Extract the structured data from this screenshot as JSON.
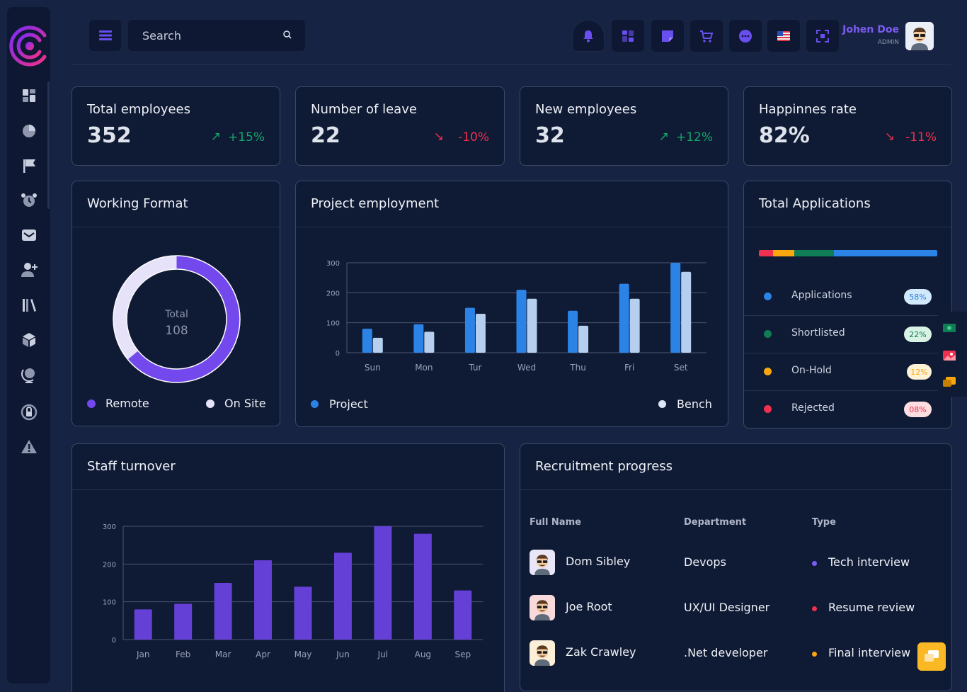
{
  "colors": {
    "accent": "#7c5cf2",
    "up": "#13a86a",
    "down": "#f0304f",
    "blue": "#2b83e6",
    "light_blue": "#b6cfee",
    "purple": "#6440d6"
  },
  "header": {
    "search_placeholder": "Search",
    "user": {
      "name": "Johen Doe",
      "role": "ADMIN"
    },
    "icons": [
      "bell-icon",
      "apps-icon",
      "note-icon",
      "cart-icon",
      "chat-icon",
      "flag-us-icon",
      "fullscreen-icon"
    ]
  },
  "sidebar": {
    "icons": [
      "dashboard-icon",
      "pie-chart-icon",
      "flag-icon",
      "alarm-icon",
      "mail-icon",
      "add-user-icon",
      "library-icon",
      "box-icon",
      "globe-icon",
      "lock-refresh-icon",
      "warning-icon"
    ]
  },
  "kpis": [
    {
      "title": "Total employees",
      "value": "352",
      "change": "+15%",
      "arrow": "↗",
      "trend": "up"
    },
    {
      "title": "Number of leave",
      "value": "22",
      "change": "-10%",
      "arrow": "↘",
      "trend": "down"
    },
    {
      "title": "New employees",
      "value": "32",
      "change": "+12%",
      "arrow": "↗",
      "trend": "up"
    },
    {
      "title": "Happinnes rate",
      "value": "82%",
      "change": "-11%",
      "arrow": "↘",
      "trend": "down"
    }
  ],
  "working_format": {
    "title": "Working Format",
    "center_label": "Total",
    "center_value": "108",
    "legend": [
      "Remote",
      "On Site"
    ]
  },
  "project_employment": {
    "title": "Project employment",
    "legend": [
      "Project",
      "Bench"
    ]
  },
  "total_applications": {
    "title": "Total Applications",
    "items": [
      {
        "label": "Applications",
        "percent": "58%",
        "color": "#2b83e6"
      },
      {
        "label": "Shortlisted",
        "percent": "22%",
        "color": "#0f7d55"
      },
      {
        "label": "On-Hold",
        "percent": "12%",
        "color": "#f9a60f"
      },
      {
        "label": "Rejected",
        "percent": "08%",
        "color": "#f0304f"
      }
    ]
  },
  "staff_turnover": {
    "title": "Staff turnover"
  },
  "recruitment": {
    "title": "Recruitment progress",
    "columns": [
      "Full Name",
      "Department",
      "Type"
    ],
    "rows": [
      {
        "name": "Dom Sibley",
        "department": "Devops",
        "type": "Tech interview",
        "type_color": "#7c5cf2",
        "avatar_bg": "#e9e6f7"
      },
      {
        "name": "Joe Root",
        "department": "UX/UI Designer",
        "type": "Resume review",
        "type_color": "#f0304f",
        "avatar_bg": "#f8d9dc"
      },
      {
        "name": "Zak Crawley",
        "department": ".Net developer",
        "type": "Final interview",
        "type_color": "#f9a60f",
        "avatar_bg": "#fbefd8"
      }
    ]
  },
  "chart_data": [
    {
      "type": "pie",
      "title": "Working Format",
      "categories": [
        "Remote",
        "On Site"
      ],
      "values": [
        64,
        36
      ],
      "center_total": 108
    },
    {
      "type": "bar",
      "title": "Project employment",
      "categories": [
        "Sun",
        "Mon",
        "Tur",
        "Wed",
        "Thu",
        "Fri",
        "Set"
      ],
      "series": [
        {
          "name": "Project",
          "values": [
            80,
            95,
            150,
            210,
            140,
            230,
            300
          ],
          "color": "#2b83e6"
        },
        {
          "name": "Bench",
          "values": [
            50,
            70,
            130,
            180,
            90,
            180,
            270
          ],
          "color": "#b6cfee"
        }
      ],
      "yticks": [
        0,
        100,
        200,
        300
      ],
      "ylim": [
        0,
        300
      ]
    },
    {
      "type": "bar",
      "title": "Total Applications",
      "categories": [
        "Rejected",
        "On-Hold",
        "Shortlisted",
        "Applications"
      ],
      "values": [
        8,
        12,
        22,
        58
      ]
    },
    {
      "type": "bar",
      "title": "Staff turnover",
      "categories": [
        "Jan",
        "Feb",
        "Mar",
        "Apr",
        "May",
        "Jun",
        "Jul",
        "Aug",
        "Sep"
      ],
      "values": [
        80,
        95,
        150,
        210,
        140,
        230,
        300,
        280,
        130
      ],
      "yticks": [
        0,
        100,
        200,
        300
      ],
      "ylim": [
        0,
        300
      ],
      "color": "#6440d6"
    }
  ]
}
